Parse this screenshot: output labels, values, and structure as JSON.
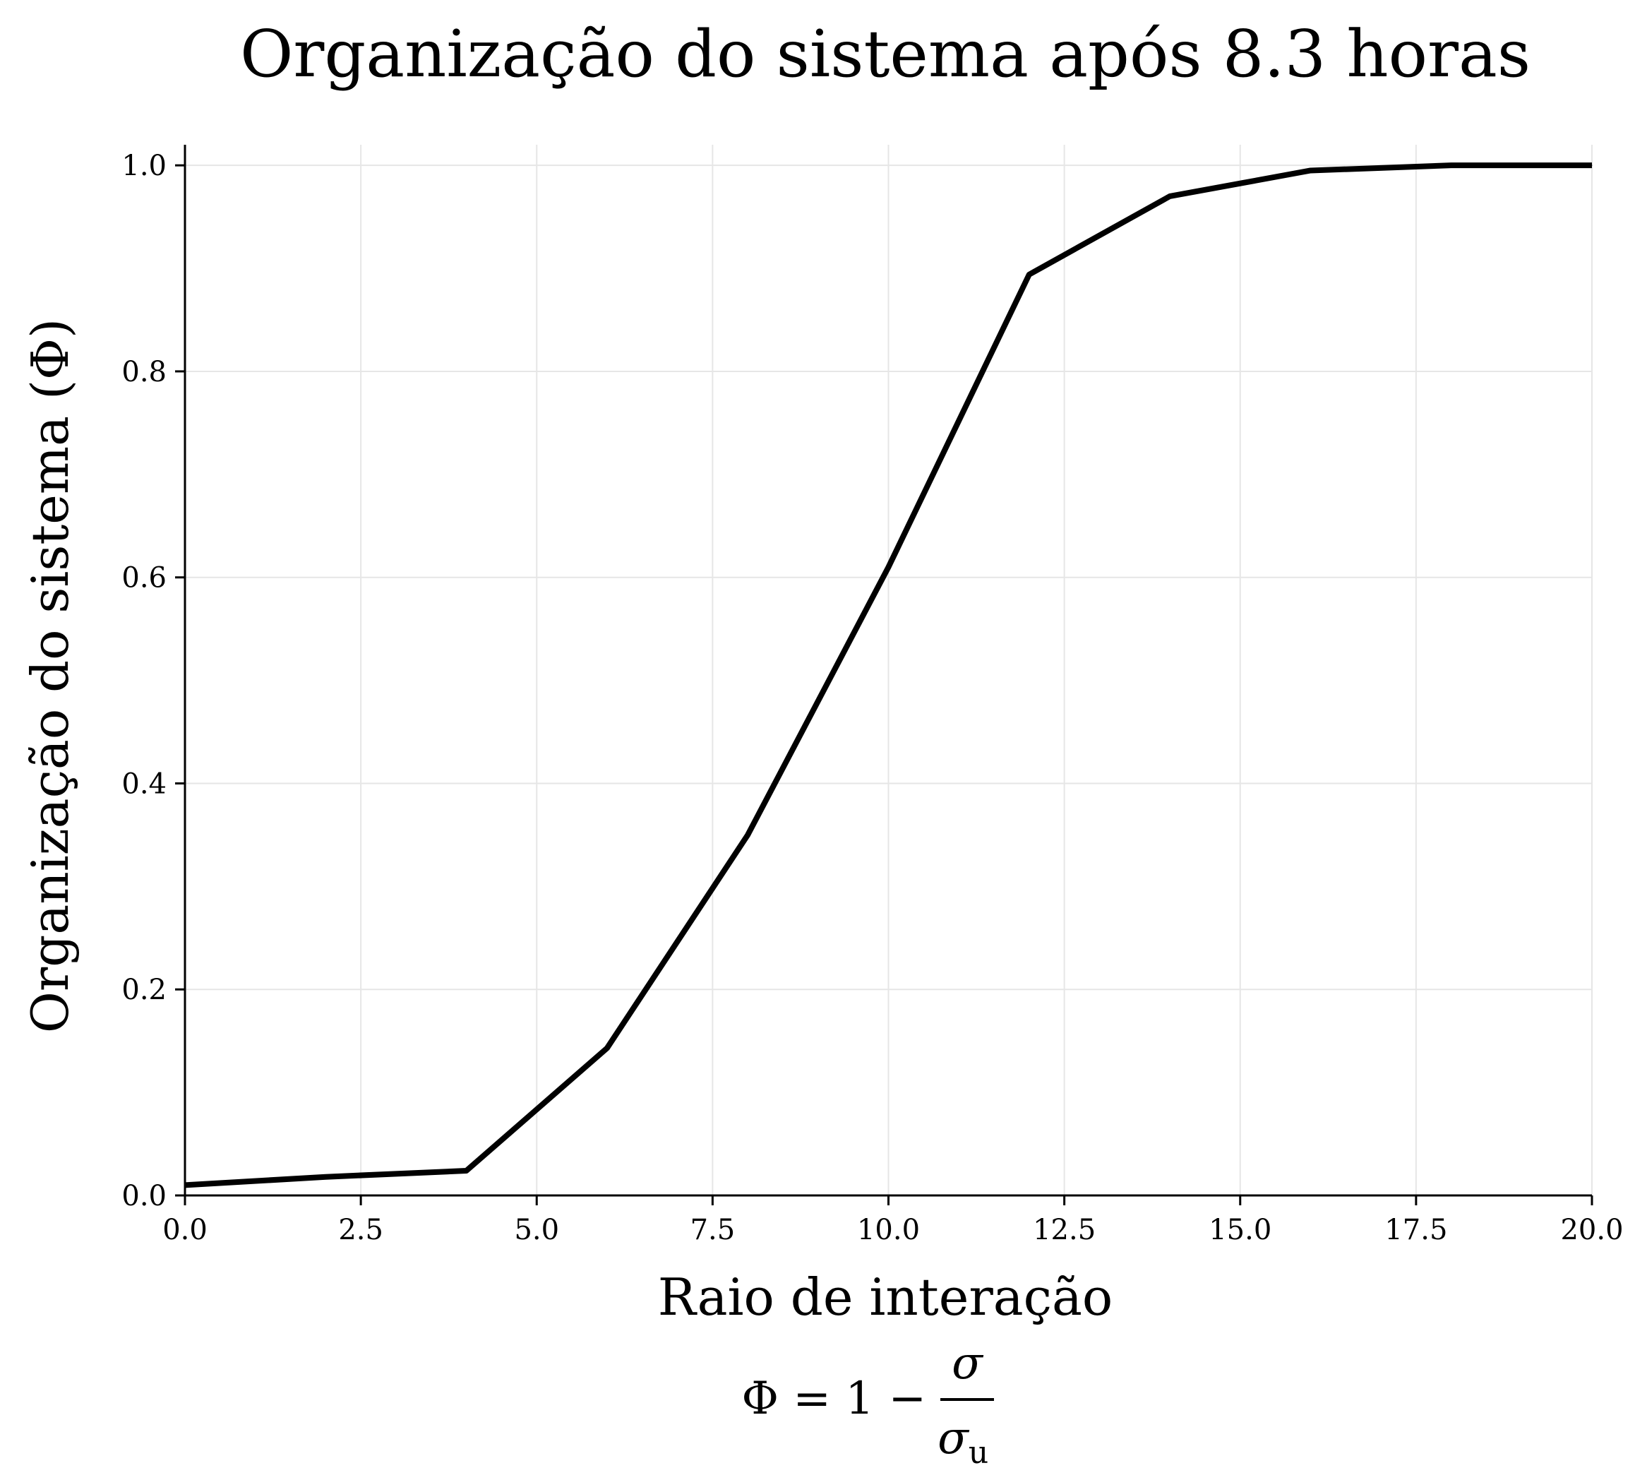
{
  "chart_data": {
    "type": "line",
    "title": "Organização do sistema após 8.3 horas",
    "xlabel": "Raio de interação",
    "ylabel": "Organização do sistema (Φ)",
    "xlim": [
      0,
      20
    ],
    "ylim": [
      0,
      1.02
    ],
    "x_ticks": [
      "0.0",
      "2.5",
      "5.0",
      "7.5",
      "10.0",
      "12.5",
      "15.0",
      "17.5",
      "20.0"
    ],
    "y_ticks": [
      "0.0",
      "0.2",
      "0.4",
      "0.6",
      "0.8",
      "1.0"
    ],
    "grid": true,
    "series": [
      {
        "color": "#000000",
        "x": [
          0,
          2,
          4,
          6,
          8,
          10,
          12,
          14,
          16,
          18,
          20
        ],
        "y": [
          0.01,
          0.018,
          0.024,
          0.143,
          0.35,
          0.61,
          0.894,
          0.97,
          0.995,
          1.0,
          1.0
        ]
      }
    ],
    "formula": {
      "lhs": "Φ = 1 −",
      "numerator": "σ",
      "denominator": "σ",
      "denominator_subscript": "u"
    }
  }
}
